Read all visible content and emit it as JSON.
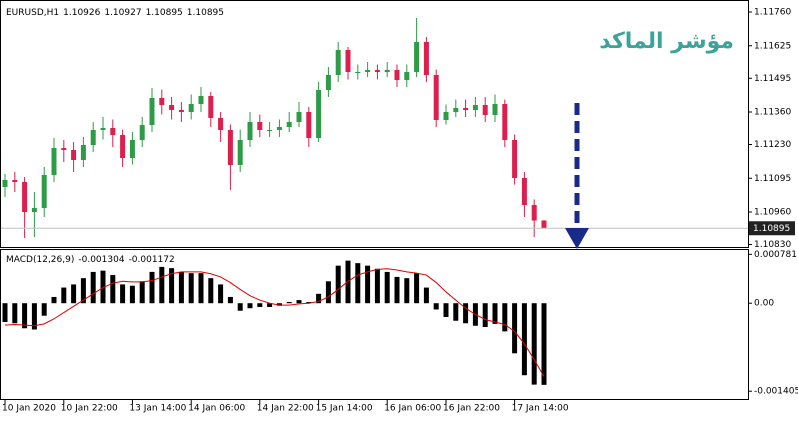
{
  "chart_data": [
    {
      "type": "candlestick",
      "symbol": "EURUSD,H1",
      "title": "مؤشر الماكد",
      "categories": [
        "10 Jan 2020",
        null,
        null,
        null,
        null,
        null,
        "10 Jan 22:00",
        null,
        null,
        null,
        null,
        null,
        null,
        "13 Jan 14:00",
        null,
        null,
        null,
        null,
        null,
        "14 Jan 06:00",
        null,
        null,
        null,
        null,
        null,
        null,
        "14 Jan 22:00",
        null,
        null,
        null,
        null,
        null,
        "15 Jan 14:00",
        null,
        null,
        null,
        null,
        null,
        null,
        "16 Jan 06:00",
        null,
        null,
        null,
        null,
        null,
        "16 Jan 22:00",
        null,
        null,
        null,
        null,
        null,
        null,
        "17 Jan 14:00",
        null,
        null,
        null
      ],
      "open": [
        1.1106,
        1.11088,
        1.1108,
        1.1096,
        1.10976,
        1.11108,
        1.11216,
        1.11208,
        1.11168,
        1.11228,
        1.11288,
        1.11296,
        1.11268,
        1.11176,
        1.11248,
        1.11308,
        1.11416,
        1.11388,
        1.11368,
        1.1136,
        1.11392,
        1.11424,
        1.11336,
        1.11288,
        1.11148,
        1.11248,
        1.1132,
        1.11288,
        1.11288,
        1.113,
        1.1132,
        1.1136,
        1.11256,
        1.11448,
        1.11508,
        1.11608,
        1.1152,
        1.1152,
        1.11528,
        1.1152,
        1.11528,
        1.11488,
        1.1152,
        1.1164,
        1.11508,
        1.11328,
        1.1136,
        1.11376,
        1.11368,
        1.11388,
        1.11348,
        1.11392,
        1.11248,
        1.11096,
        1.10988,
        1.10926
      ],
      "high": [
        1.11112,
        1.1112,
        1.111,
        1.1104,
        1.1114,
        1.11256,
        1.11248,
        1.1124,
        1.1126,
        1.1132,
        1.1134,
        1.1133,
        1.1129,
        1.1128,
        1.1134,
        1.11456,
        1.1145,
        1.1142,
        1.114,
        1.1143,
        1.1146,
        1.1144,
        1.1136,
        1.1131,
        1.1129,
        1.1136,
        1.1135,
        1.1132,
        1.1133,
        1.1136,
        1.114,
        1.1138,
        1.1148,
        1.1154,
        1.1164,
        1.1162,
        1.1155,
        1.1156,
        1.1155,
        1.1156,
        1.1155,
        1.1155,
        1.11736,
        1.1166,
        1.1153,
        1.1139,
        1.1141,
        1.1141,
        1.1142,
        1.1142,
        1.1143,
        1.1141,
        1.1127,
        1.1112,
        1.1101,
        1.10927
      ],
      "low": [
        1.1102,
        1.1104,
        1.10856,
        1.1086,
        1.1094,
        1.1108,
        1.1116,
        1.1112,
        1.1114,
        1.112,
        1.1125,
        1.1122,
        1.1114,
        1.1115,
        1.1122,
        1.1128,
        1.1135,
        1.1133,
        1.1132,
        1.1133,
        1.1136,
        1.113,
        1.1124,
        1.11048,
        1.1112,
        1.1122,
        1.1126,
        1.1126,
        1.1126,
        1.1128,
        1.113,
        1.1122,
        1.1124,
        1.1142,
        1.1148,
        1.1149,
        1.1149,
        1.115,
        1.1149,
        1.115,
        1.1146,
        1.1146,
        1.115,
        1.1148,
        1.113,
        1.1131,
        1.1134,
        1.1134,
        1.1134,
        1.1132,
        1.1132,
        1.1122,
        1.1107,
        1.1094,
        1.1086,
        1.10895
      ],
      "close": [
        1.11088,
        1.1108,
        1.1096,
        1.10976,
        1.11108,
        1.11216,
        1.11208,
        1.11168,
        1.11228,
        1.11288,
        1.11296,
        1.11268,
        1.11176,
        1.11248,
        1.11308,
        1.11416,
        1.11388,
        1.11368,
        1.1136,
        1.11392,
        1.11424,
        1.11336,
        1.11288,
        1.11148,
        1.11248,
        1.1132,
        1.11288,
        1.11288,
        1.113,
        1.1132,
        1.1136,
        1.11256,
        1.11448,
        1.11508,
        1.11608,
        1.1152,
        1.1152,
        1.11528,
        1.1152,
        1.11528,
        1.11488,
        1.1152,
        1.1164,
        1.11508,
        1.11328,
        1.1136,
        1.11376,
        1.11368,
        1.11388,
        1.11348,
        1.11392,
        1.11248,
        1.11096,
        1.10988,
        1.10926,
        1.10895
      ],
      "up_color": "#2e9b47",
      "down_color": "#dc1f4c",
      "price_line_color": "#c0c0c0",
      "ylim": [
        1.1082,
        1.11792
      ],
      "yticks": [
        {
          "value": 1.1176,
          "label": "1.11760"
        },
        1.11625,
        1.11495,
        {
          "value": 1.1136,
          "label": "1.11360"
        },
        {
          "value": 1.1123,
          "label": "1.11230"
        },
        1.11095,
        {
          "value": 1.1096,
          "label": "1.10960"
        },
        {
          "value": 1.1083,
          "label": "1.10830"
        }
      ]
    },
    {
      "type": "macd",
      "label": "MACD(12,26,9)",
      "histogram": {
        "color": "#000000",
        "values": [
          -0.0003,
          -0.00032,
          -0.0004,
          -0.00042,
          -0.0002,
          0.0001,
          0.00025,
          0.0003,
          0.0004,
          0.0005,
          0.00052,
          0.00045,
          0.0003,
          0.00028,
          0.00035,
          0.0005,
          0.00058,
          0.00056,
          0.0005,
          0.00048,
          0.00048,
          0.0004,
          0.0003,
          0.0001,
          -0.00012,
          -8e-05,
          -6e-05,
          -6e-05,
          -4e-05,
          2e-05,
          5e-05,
          2e-05,
          0.00015,
          0.00035,
          0.0006,
          0.00068,
          0.00064,
          0.0006,
          0.00055,
          0.0005,
          0.00042,
          0.0004,
          0.00048,
          0.00025,
          -0.0001,
          -0.00022,
          -0.00028,
          -0.00032,
          -0.00036,
          -0.00038,
          -0.00033,
          -0.00045,
          -0.0008,
          -0.00115,
          -0.0013,
          -0.001304
        ]
      },
      "signal": {
        "color": "#e00000",
        "values": [
          -0.00035,
          -0.00034,
          -0.00035,
          -0.00036,
          -0.00033,
          -0.00025,
          -0.00015,
          -5e-05,
          5e-05,
          0.00015,
          0.00025,
          0.00032,
          0.00035,
          0.00034,
          0.00034,
          0.00036,
          0.00042,
          0.00047,
          0.0005,
          0.0005,
          0.0005,
          0.00047,
          0.00042,
          0.00033,
          0.00022,
          0.00012,
          5e-05,
          0,
          -3e-05,
          -3e-05,
          -1e-05,
          0,
          3e-05,
          0.0001,
          0.00022,
          0.00035,
          0.00045,
          0.0005,
          0.00054,
          0.00055,
          0.00053,
          0.0005,
          0.00048,
          0.00045,
          0.00033,
          0.00018,
          5e-05,
          -8e-05,
          -0.00018,
          -0.00026,
          -0.0003,
          -0.00034,
          -0.00045,
          -0.00065,
          -0.0009,
          -0.001172
        ]
      },
      "ylim": [
        -0.00153,
        0.00085
      ],
      "yticks": [
        0.000781,
        {
          "value": 0,
          "label": "0.00"
        },
        -0.001405
      ]
    }
  ]
}
